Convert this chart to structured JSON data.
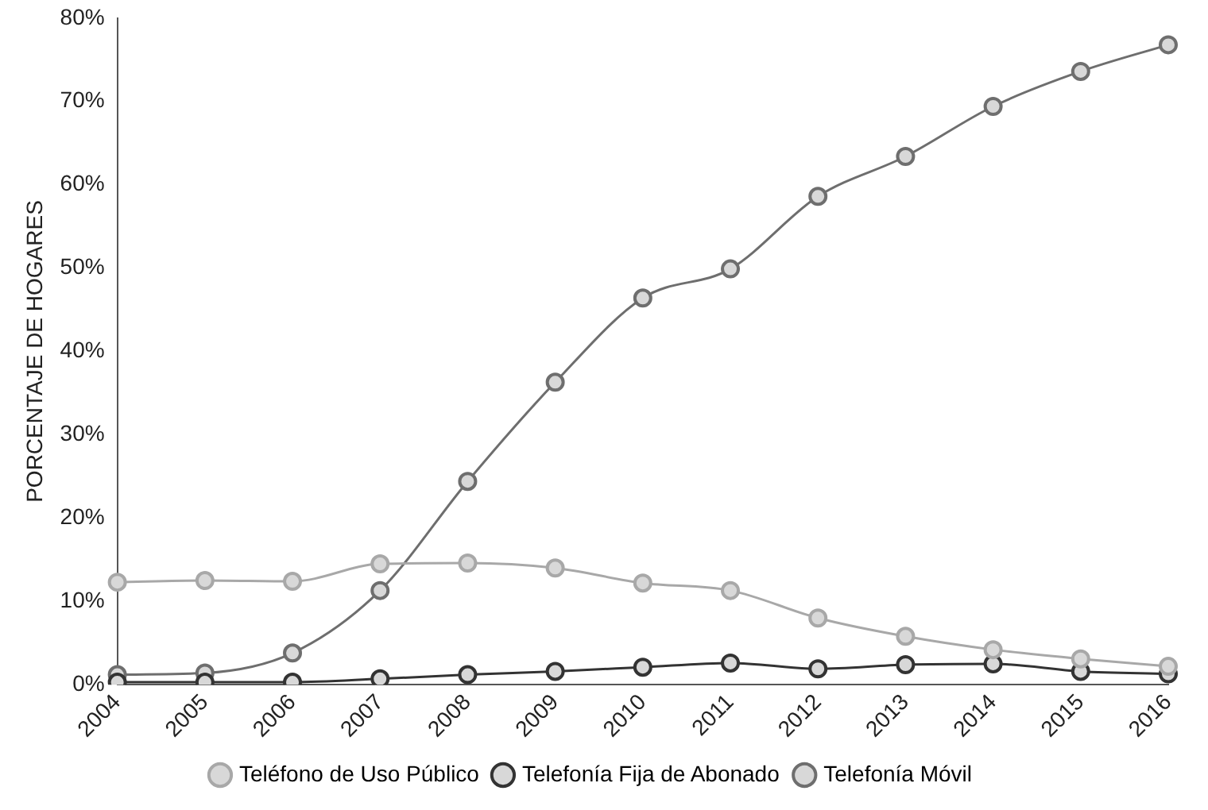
{
  "chart_data": {
    "type": "line",
    "ylabel": "PORCENTAJE DE HOGARES",
    "categories": [
      "2004",
      "2005",
      "2006",
      "2007",
      "2008",
      "2009",
      "2010",
      "2011",
      "2012",
      "2013",
      "2014",
      "2015",
      "2016"
    ],
    "series": [
      {
        "name": "Teléfono de Uso Público",
        "color": "#a8a8a8",
        "values": [
          12.3,
          12.5,
          12.4,
          14.5,
          14.6,
          14.0,
          12.2,
          11.3,
          8.0,
          5.8,
          4.2,
          3.1,
          2.2
        ]
      },
      {
        "name": "Telefonía Fija de Abonado",
        "color": "#333333",
        "values": [
          0.3,
          0.3,
          0.3,
          0.7,
          1.2,
          1.6,
          2.1,
          2.6,
          1.9,
          2.4,
          2.5,
          1.6,
          1.3
        ]
      },
      {
        "name": "Telefonía Móvil",
        "color": "#6e6e6e",
        "values": [
          1.2,
          1.4,
          3.8,
          11.3,
          24.4,
          36.3,
          46.4,
          49.9,
          58.6,
          63.4,
          69.4,
          73.6,
          76.8
        ]
      }
    ],
    "ylim": [
      0,
      80
    ],
    "yticks": [
      {
        "value": 0,
        "label": "0%"
      },
      {
        "value": 10,
        "label": "10%"
      },
      {
        "value": 20,
        "label": "20%"
      },
      {
        "value": 30,
        "label": "30%"
      },
      {
        "value": 40,
        "label": "40%"
      },
      {
        "value": 50,
        "label": "50%"
      },
      {
        "value": 60,
        "label": "60%"
      },
      {
        "value": 70,
        "label": "70%"
      },
      {
        "value": 80,
        "label": "80%"
      }
    ],
    "grid": false,
    "legend": "bottom",
    "marker": "circle",
    "line_style": "solid"
  }
}
